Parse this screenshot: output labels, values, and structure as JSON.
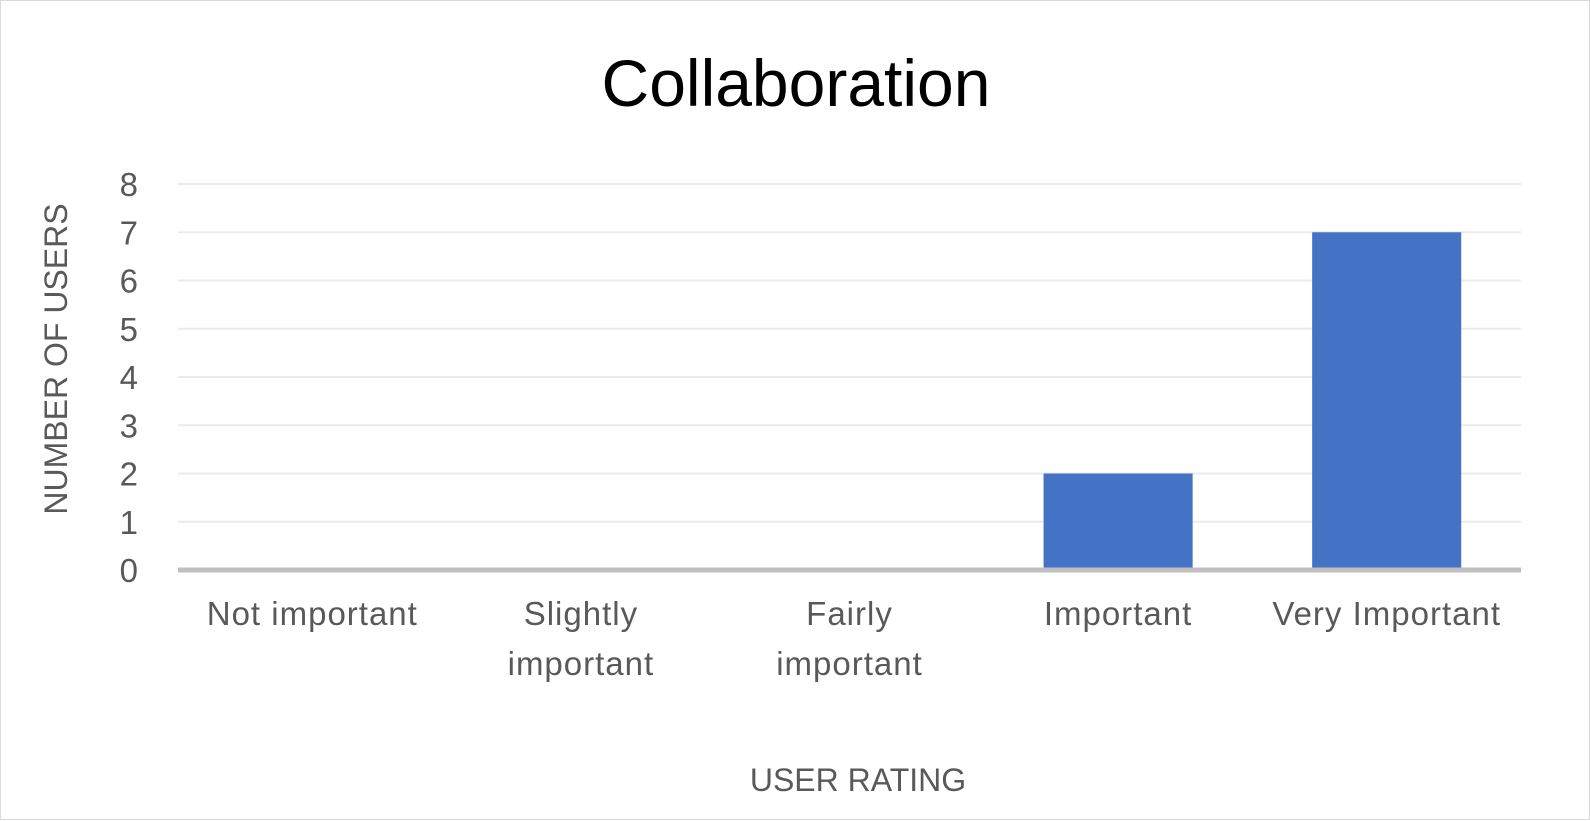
{
  "chart_data": {
    "type": "bar",
    "title": "Collaboration",
    "xlabel": "USER RATING",
    "ylabel": "NUMBER OF USERS",
    "categories": [
      "Not important",
      "Slightly important",
      "Fairly important",
      "Important",
      "Very Important"
    ],
    "category_lines": [
      [
        "Not important"
      ],
      [
        "Slightly",
        "important"
      ],
      [
        "Fairly",
        "important"
      ],
      [
        "Important"
      ],
      [
        "Very Important"
      ]
    ],
    "values": [
      0,
      0,
      0,
      2,
      7
    ],
    "ylim": [
      0,
      8
    ],
    "yticks": [
      "0",
      "1",
      "2",
      "3",
      "4",
      "5",
      "6",
      "7",
      "8"
    ],
    "grid": true,
    "legend": "none",
    "colors": {
      "bar": "#4472C4",
      "gridline": "#ebebeb",
      "baseline": "#bfbfbf",
      "text": "#595959",
      "title": "#000000"
    }
  }
}
